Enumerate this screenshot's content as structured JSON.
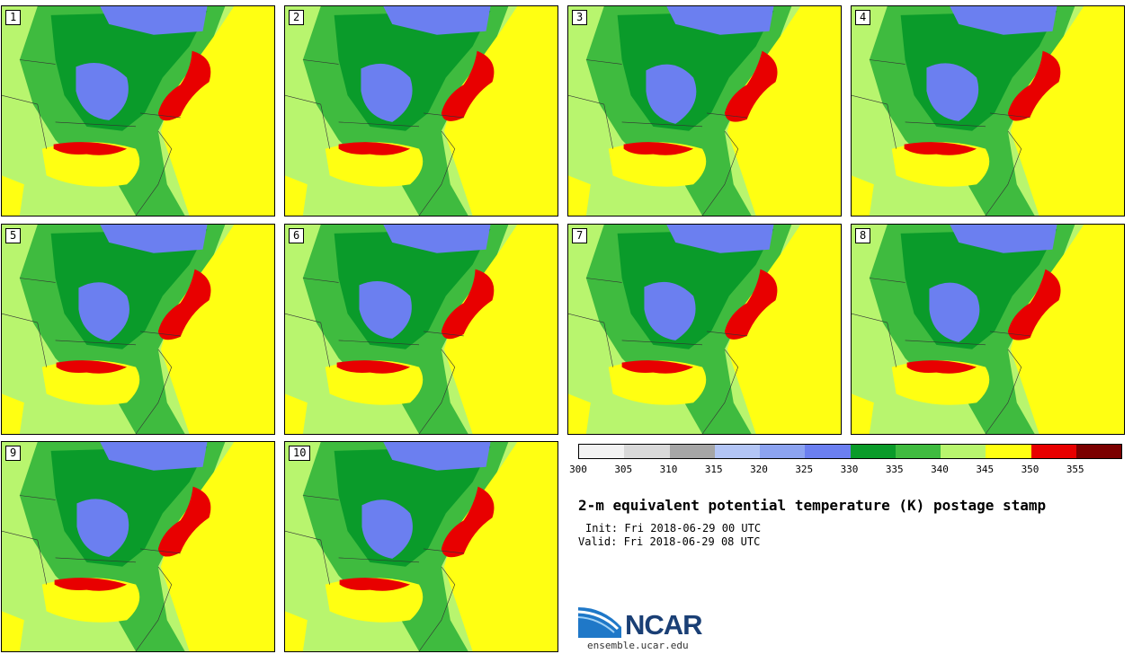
{
  "panels": [
    {
      "label": "1"
    },
    {
      "label": "2"
    },
    {
      "label": "3"
    },
    {
      "label": "4"
    },
    {
      "label": "5"
    },
    {
      "label": "6"
    },
    {
      "label": "7"
    },
    {
      "label": "8"
    },
    {
      "label": "9"
    },
    {
      "label": "10"
    }
  ],
  "legend": {
    "colors": [
      "#f2f2f2",
      "#d9d9d9",
      "#a6a6a6",
      "#b3c5f5",
      "#8ca3f0",
      "#6b7ff0",
      "#0a9b2a",
      "#3fbb3f",
      "#b8f56e",
      "#ffff12",
      "#e80000",
      "#7b0000"
    ],
    "ticks": [
      "300",
      "305",
      "310",
      "315",
      "320",
      "325",
      "330",
      "335",
      "340",
      "345",
      "350",
      "355"
    ]
  },
  "title": "2-m equivalent potential temperature (K) postage stamp",
  "init": "Init: Fri 2018-06-29 00 UTC",
  "valid": "Valid: Fri 2018-06-29 08 UTC",
  "logo": {
    "text": "NCAR",
    "site": "ensemble.ucar.edu"
  }
}
